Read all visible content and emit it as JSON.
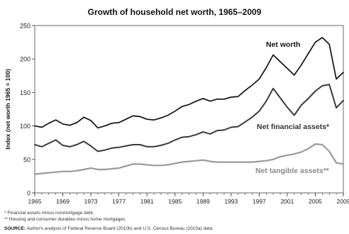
{
  "chart_data": {
    "type": "line",
    "title": "Growth of household net worth, 1965–2009",
    "ylabel": "Index (net worth 1965 = 100)",
    "xlabel": "",
    "ylim": [
      0,
      250
    ],
    "xlim": [
      1965,
      2009
    ],
    "yticks": [
      "0",
      "50",
      "100",
      "150",
      "200",
      "250"
    ],
    "xticks": [
      "1965",
      "1969",
      "1973",
      "1977",
      "1981",
      "1985",
      "1989",
      "1993",
      "1997",
      "2001",
      "2005",
      "2009"
    ],
    "grid": false,
    "legend": "inline labels",
    "x": [
      1965,
      1966,
      1967,
      1968,
      1969,
      1970,
      1971,
      1972,
      1973,
      1974,
      1975,
      1976,
      1977,
      1978,
      1979,
      1980,
      1981,
      1982,
      1983,
      1984,
      1985,
      1986,
      1987,
      1988,
      1989,
      1990,
      1991,
      1992,
      1993,
      1994,
      1995,
      1996,
      1997,
      1998,
      1999,
      2000,
      2001,
      2002,
      2003,
      2004,
      2005,
      2006,
      2007,
      2008,
      2009
    ],
    "series": [
      {
        "name": "Net worth",
        "color": "#111111",
        "values": [
          100,
          98,
          104,
          109,
          103,
          101,
          105,
          113,
          108,
          97,
          100,
          104,
          105,
          110,
          115,
          114,
          110,
          109,
          112,
          116,
          122,
          129,
          132,
          137,
          141,
          137,
          140,
          140,
          143,
          144,
          153,
          161,
          170,
          187,
          206,
          196,
          186,
          176,
          191,
          208,
          225,
          232,
          222,
          170,
          180
        ]
      },
      {
        "name": "Net financial assets*",
        "color": "#3a3a3a",
        "values": [
          72,
          69,
          74,
          79,
          71,
          69,
          72,
          77,
          70,
          62,
          64,
          67,
          68,
          70,
          72,
          72,
          69,
          69,
          71,
          74,
          79,
          83,
          84,
          87,
          91,
          88,
          93,
          94,
          98,
          99,
          106,
          113,
          122,
          137,
          156,
          142,
          128,
          116,
          131,
          141,
          152,
          160,
          162,
          127,
          138
        ]
      },
      {
        "name": "Net tangible assets**",
        "color": "#9a9a9a",
        "values": [
          28,
          29,
          30,
          31,
          32,
          32,
          33,
          35,
          37,
          35,
          35,
          36,
          37,
          40,
          43,
          43,
          42,
          41,
          41,
          42,
          44,
          46,
          47,
          48,
          49,
          47,
          46,
          46,
          46,
          46,
          46,
          46,
          47,
          48,
          50,
          54,
          56,
          58,
          61,
          66,
          73,
          72,
          62,
          45,
          43
        ]
      }
    ]
  },
  "labels": {
    "net_worth": "Net worth",
    "net_financial": "Net financial assets*",
    "net_tangible": "Net tangible assets**"
  },
  "footnotes": {
    "f1": "* Financial assets minus nonmortgage debt.",
    "f2": "** Housing and consumer durables minus home mortgages.",
    "source_label": "SOURCE:",
    "source_text": "Author's analysis of Federal Reserve Board (2010b) and U.S. Census Bureau (2010a) data."
  }
}
